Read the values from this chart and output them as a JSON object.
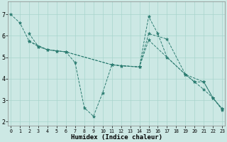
{
  "background_color": "#cce8e4",
  "grid_color": "#a8d4cc",
  "line_color": "#2d7d72",
  "xlabel": "Humidex (Indice chaleur)",
  "xlim": [
    -0.3,
    23.3
  ],
  "ylim": [
    1.8,
    7.6
  ],
  "yticks": [
    2,
    3,
    4,
    5,
    6,
    7
  ],
  "xticks": [
    0,
    1,
    2,
    3,
    4,
    5,
    6,
    7,
    8,
    9,
    10,
    11,
    12,
    13,
    14,
    15,
    16,
    17,
    18,
    19,
    20,
    21,
    22,
    23
  ],
  "series": [
    {
      "x": [
        0,
        1,
        2,
        3,
        4,
        5,
        6,
        11,
        12,
        14,
        15,
        17,
        19,
        20,
        21,
        22,
        23
      ],
      "y": [
        7.0,
        6.6,
        5.75,
        5.5,
        5.35,
        5.3,
        5.25,
        4.65,
        4.6,
        4.55,
        6.1,
        5.85,
        4.2,
        3.85,
        3.85,
        3.1,
        2.6
      ]
    },
    {
      "x": [
        2,
        3,
        4,
        5,
        6,
        7,
        8,
        9,
        10,
        11,
        14,
        15,
        16,
        17,
        19,
        20,
        21,
        22,
        23
      ],
      "y": [
        6.1,
        5.5,
        5.35,
        5.3,
        5.25,
        4.75,
        2.65,
        2.25,
        3.35,
        4.65,
        4.55,
        6.9,
        6.1,
        5.0,
        4.2,
        3.85,
        3.5,
        3.1,
        2.55
      ]
    },
    {
      "x": [
        2,
        4,
        5,
        6,
        11,
        12,
        14,
        15,
        19,
        21,
        22,
        23
      ],
      "y": [
        5.75,
        5.35,
        5.3,
        5.25,
        4.65,
        4.6,
        4.55,
        5.8,
        4.2,
        3.85,
        3.1,
        2.6
      ]
    }
  ]
}
